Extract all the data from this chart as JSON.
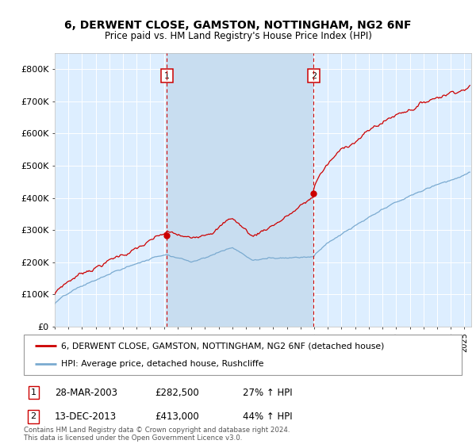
{
  "title": "6, DERWENT CLOSE, GAMSTON, NOTTINGHAM, NG2 6NF",
  "subtitle": "Price paid vs. HM Land Registry's House Price Index (HPI)",
  "ylabel_ticks": [
    "£0",
    "£100K",
    "£200K",
    "£300K",
    "£400K",
    "£500K",
    "£600K",
    "£700K",
    "£800K"
  ],
  "ytick_vals": [
    0,
    100000,
    200000,
    300000,
    400000,
    500000,
    600000,
    700000,
    800000
  ],
  "ylim": [
    0,
    850000
  ],
  "xlim_start": 1995.0,
  "xlim_end": 2025.5,
  "sale1_x": 2003.22,
  "sale1_y": 282500,
  "sale2_x": 2013.96,
  "sale2_y": 413000,
  "sale1_label": "28-MAR-2003",
  "sale1_price": "£282,500",
  "sale1_hpi": "27% ↑ HPI",
  "sale2_label": "13-DEC-2013",
  "sale2_price": "£413,000",
  "sale2_hpi": "44% ↑ HPI",
  "legend_line1": "6, DERWENT CLOSE, GAMSTON, NOTTINGHAM, NG2 6NF (detached house)",
  "legend_line2": "HPI: Average price, detached house, Rushcliffe",
  "footer": "Contains HM Land Registry data © Crown copyright and database right 2024.\nThis data is licensed under the Open Government Licence v3.0.",
  "property_color": "#cc0000",
  "hpi_color": "#7aaad0",
  "bg_color": "#ddeeff",
  "highlight_color": "#c8ddf0",
  "grid_color": "#ffffff",
  "sale_vline_color": "#cc0000",
  "sale_box_color": "#cc0000",
  "fig_bg": "#ffffff"
}
